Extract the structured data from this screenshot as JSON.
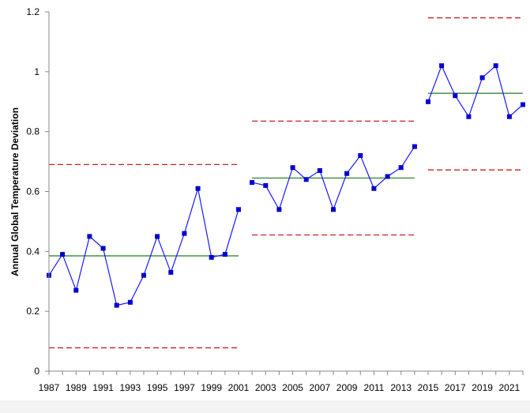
{
  "chart_data": {
    "type": "line",
    "title": "",
    "xlabel": "",
    "ylabel": "Annual Global Temperature Deviation",
    "xlim": [
      1987,
      2022
    ],
    "ylim": [
      0,
      1.2
    ],
    "y_ticks": [
      0,
      0.2,
      0.4,
      0.6,
      0.8,
      1,
      1.2
    ],
    "y_tick_labels": [
      "0",
      "0.2",
      "0.4",
      "0.6",
      "0.8",
      "1",
      "1.2"
    ],
    "x_ticks": [
      1987,
      1989,
      1991,
      1993,
      1995,
      1997,
      1999,
      2001,
      2003,
      2005,
      2007,
      2009,
      2011,
      2013,
      2015,
      2017,
      2019,
      2021
    ],
    "x_tick_labels": [
      "1987",
      "1989",
      "1991",
      "1993",
      "1995",
      "1997",
      "1999",
      "2001",
      "2003",
      "2005",
      "2007",
      "2009",
      "2011",
      "2013",
      "2015",
      "2017",
      "2019",
      "2021"
    ],
    "grid": false,
    "legend": "none",
    "colors": {
      "series": "#1a1aff",
      "marker": "#0000cc",
      "center_line": "#207a20",
      "limit_line": "#cc1f1f",
      "axis": "#888888"
    },
    "segments": [
      {
        "x": [
          1987,
          1988,
          1989,
          1990,
          1991,
          1992,
          1993,
          1994,
          1995,
          1996,
          1997,
          1998,
          1999,
          2000,
          2001
        ],
        "y": [
          0.32,
          0.39,
          0.27,
          0.45,
          0.41,
          0.22,
          0.23,
          0.32,
          0.45,
          0.33,
          0.46,
          0.61,
          0.38,
          0.39,
          0.54
        ],
        "center": 0.385,
        "ucl": 0.69,
        "lcl": 0.078,
        "x_range": [
          1987,
          2001
        ]
      },
      {
        "x": [
          2002,
          2003,
          2004,
          2005,
          2006,
          2007,
          2008,
          2009,
          2010,
          2011,
          2012,
          2013,
          2014
        ],
        "y": [
          0.63,
          0.62,
          0.54,
          0.68,
          0.64,
          0.67,
          0.54,
          0.66,
          0.72,
          0.61,
          0.65,
          0.68,
          0.75
        ],
        "center": 0.645,
        "ucl": 0.835,
        "lcl": 0.455,
        "x_range": [
          2002,
          2014
        ]
      },
      {
        "x": [
          2015,
          2016,
          2017,
          2018,
          2019,
          2020,
          2021,
          2022
        ],
        "y": [
          0.9,
          1.02,
          0.92,
          0.85,
          0.98,
          1.02,
          0.85,
          0.89
        ],
        "center": 0.928,
        "ucl": 1.18,
        "lcl": 0.672,
        "x_range": [
          2015,
          2022
        ]
      }
    ]
  }
}
